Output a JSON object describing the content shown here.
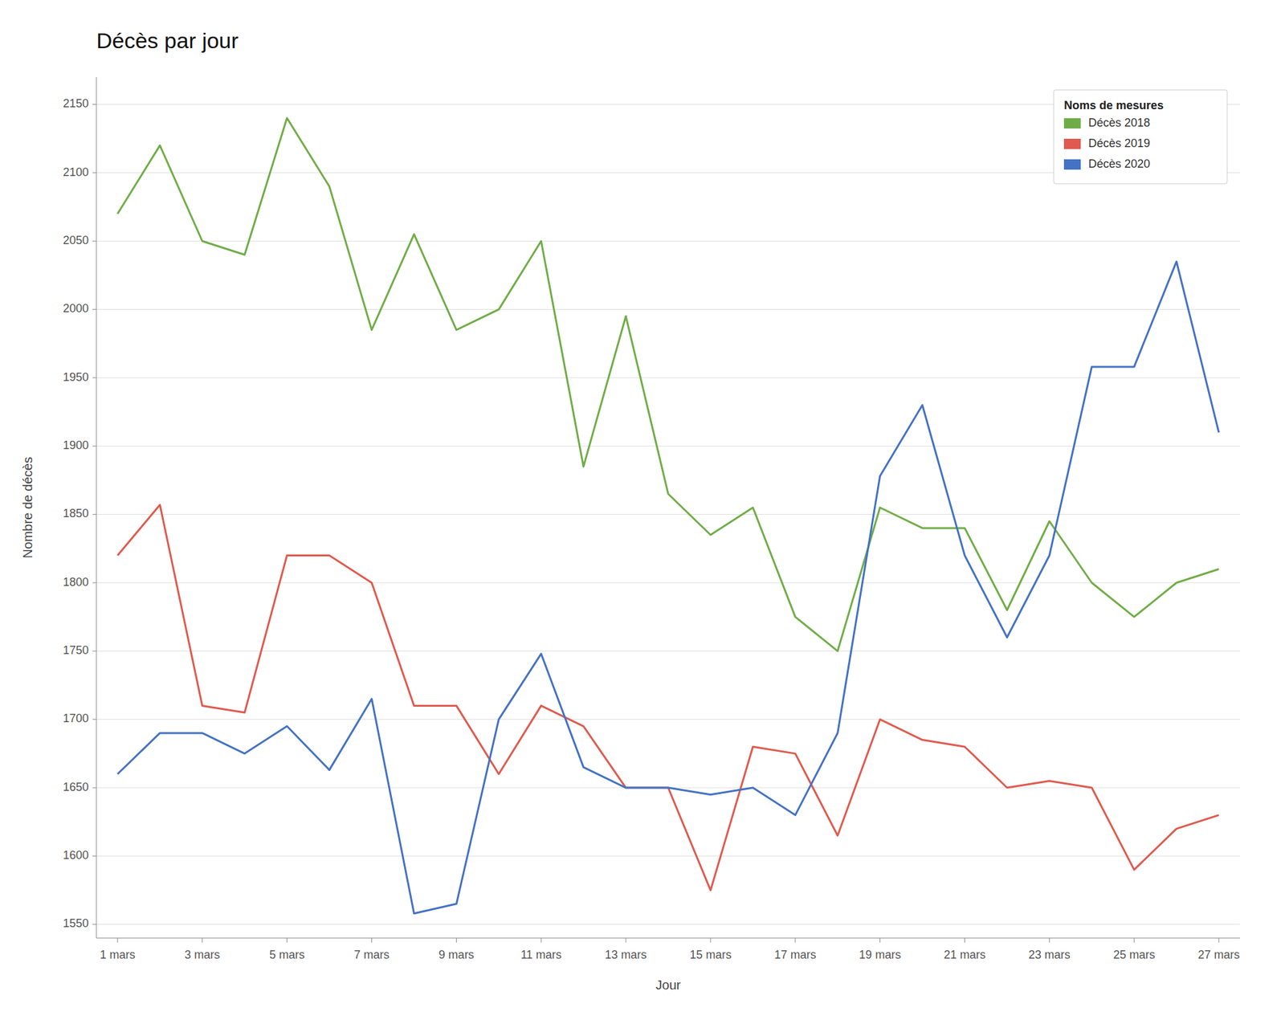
{
  "chart_data": {
    "type": "line",
    "title": "Décès par jour",
    "x_label": "Jour",
    "y_label": "Nombre de décès",
    "legend_title": "Noms de mesures",
    "categories": [
      "1 mars",
      null,
      "3 mars",
      null,
      "5 mars",
      null,
      "7 mars",
      null,
      "9 mars",
      null,
      "11 mars",
      null,
      "13 mars",
      null,
      "15 mars",
      null,
      "17 mars",
      null,
      "19 mars",
      null,
      "21 mars",
      null,
      "23 mars",
      null,
      "25 mars",
      null,
      "27 mars"
    ],
    "series": [
      {
        "name": "Décès 2018",
        "color": "#70AD47",
        "values": [
          2070,
          2120,
          2050,
          2040,
          2140,
          2090,
          1985,
          2055,
          1985,
          2000,
          2050,
          1885,
          1995,
          1865,
          1835,
          1855,
          1775,
          1750,
          1855,
          1840,
          1840,
          1780,
          1845,
          1800,
          1775,
          1800,
          1810
        ]
      },
      {
        "name": "Décès 2019",
        "color": "#E05A4E",
        "values": [
          1820,
          1857,
          1710,
          1705,
          1820,
          1820,
          1800,
          1710,
          1710,
          1660,
          1710,
          1695,
          1650,
          1650,
          1575,
          1680,
          1675,
          1615,
          1700,
          1685,
          1680,
          1650,
          1655,
          1650,
          1590,
          1620,
          1630
        ]
      },
      {
        "name": "Décès 2020",
        "color": "#4472C4",
        "values": [
          1660,
          1690,
          1690,
          1675,
          1695,
          1663,
          1715,
          1558,
          1565,
          1700,
          1748,
          1665,
          1650,
          1650,
          1645,
          1650,
          1630,
          1690,
          1878,
          1930,
          1820,
          1760,
          1820,
          1958,
          1958,
          2035,
          1910
        ]
      }
    ],
    "ylim": [
      1540,
      2170
    ],
    "yticks": [
      1550,
      1600,
      1650,
      1700,
      1750,
      1800,
      1850,
      1900,
      1950,
      2000,
      2050,
      2100,
      2150
    ],
    "grid": true,
    "legend": "upper right"
  }
}
